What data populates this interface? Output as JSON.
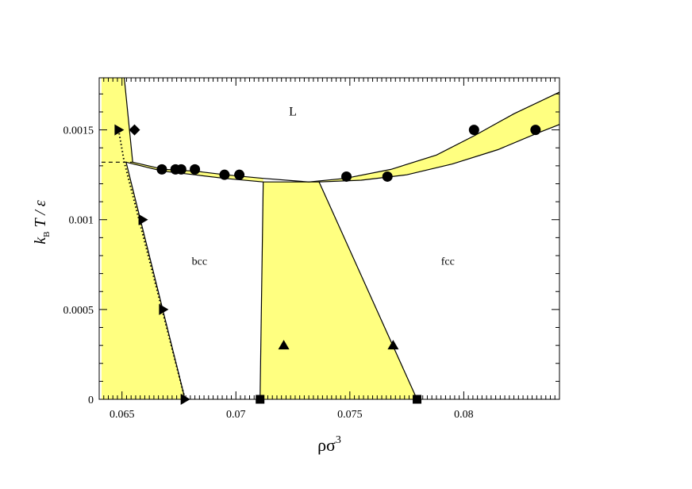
{
  "chart_data": {
    "type": "scatter",
    "xlabel": "ρσ",
    "xlabel_sup": "3",
    "ylabel": {
      "k": "k",
      "sub": "B",
      "rest": " T / ε"
    },
    "xlim": [
      0.064,
      0.0842
    ],
    "ylim": [
      0,
      0.00179
    ],
    "x_ticks": [
      {
        "value": 0.065,
        "label": "0.065"
      },
      {
        "value": 0.07,
        "label": "0.07"
      },
      {
        "value": 0.075,
        "label": "0.075"
      },
      {
        "value": 0.08,
        "label": "0.08"
      }
    ],
    "y_ticks": [
      {
        "value": 0,
        "label": "0"
      },
      {
        "value": 0.0005,
        "label": "0.0005"
      },
      {
        "value": 0.001,
        "label": "0.001"
      },
      {
        "value": 0.0015,
        "label": "0.0015"
      }
    ],
    "region_labels": [
      {
        "text": "L",
        "x": 0.0725,
        "y": 0.00158
      },
      {
        "text": "bcc",
        "x": 0.0684,
        "y": 0.00075
      },
      {
        "text": "fcc",
        "x": 0.0793,
        "y": 0.00075
      }
    ],
    "fill_color": "#ffff80",
    "regions": [
      {
        "name": "liquid-gas-coexistence",
        "points": [
          [
            0.0641,
            0.00179
          ],
          [
            0.0651,
            0.00179
          ],
          [
            0.06547,
            0.00132
          ],
          [
            0.0641,
            0.00132
          ]
        ]
      },
      {
        "name": "left-coexistence-strip",
        "points": [
          [
            0.0641,
            0.00132
          ],
          [
            0.06518,
            0.00132
          ],
          [
            0.06777,
            0
          ],
          [
            0.0641,
            0
          ]
        ]
      },
      {
        "name": "bcc-liquid-band",
        "points": [
          [
            0.06547,
            0.00132
          ],
          [
            0.06685,
            0.00128
          ],
          [
            0.06825,
            0.00127
          ],
          [
            0.06955,
            0.00125
          ],
          [
            0.0712,
            0.00123
          ],
          [
            0.0712,
            0.00121
          ],
          [
            0.0695,
            0.00123
          ],
          [
            0.0682,
            0.00125
          ],
          [
            0.0668,
            0.00127
          ],
          [
            0.06518,
            0.00132
          ]
        ]
      },
      {
        "name": "bcc-fcc-coexistence",
        "points": [
          [
            0.07106,
            0
          ],
          [
            0.0712,
            0.00121
          ],
          [
            0.07365,
            0.00121
          ],
          [
            0.07795,
            0
          ]
        ]
      },
      {
        "name": "fcc-liquid-band",
        "points": [
          [
            0.0732,
            0.00121
          ],
          [
            0.0748,
            0.00123
          ],
          [
            0.0768,
            0.00128
          ],
          [
            0.0788,
            0.00136
          ],
          [
            0.0805,
            0.00147
          ],
          [
            0.0822,
            0.00159
          ],
          [
            0.0842,
            0.00171
          ],
          [
            0.0842,
            0.00153
          ],
          [
            0.0832,
            0.00148
          ],
          [
            0.0815,
            0.00139
          ],
          [
            0.0795,
            0.00131
          ],
          [
            0.0775,
            0.00125
          ],
          [
            0.0755,
            0.00122
          ],
          [
            0.07365,
            0.00121
          ]
        ]
      }
    ],
    "boundaries": [
      {
        "name": "gas-boundary",
        "style": "solid",
        "points": [
          [
            0.0651,
            0.00179
          ],
          [
            0.06547,
            0.00132
          ]
        ]
      },
      {
        "name": "bcc-coexistence-left",
        "style": "solid",
        "points": [
          [
            0.06518,
            0.00132
          ],
          [
            0.06777,
            0
          ]
        ]
      },
      {
        "name": "bcc-coexistence-dotted",
        "style": "dotted",
        "points": [
          [
            0.06485,
            0.0015
          ],
          [
            0.0651,
            0.00132
          ],
          [
            0.06777,
            0
          ]
        ]
      },
      {
        "name": "triple-line",
        "style": "dashed",
        "points": [
          [
            0.0641,
            0.00132
          ],
          [
            0.06547,
            0.00132
          ]
        ]
      },
      {
        "name": "bcc-freezing-upper",
        "style": "solid",
        "points": [
          [
            0.06547,
            0.00132
          ],
          [
            0.06685,
            0.00128
          ],
          [
            0.06825,
            0.00127
          ],
          [
            0.06955,
            0.00125
          ],
          [
            0.0712,
            0.00123
          ],
          [
            0.0732,
            0.00121
          ],
          [
            0.0748,
            0.00123
          ],
          [
            0.0768,
            0.00128
          ],
          [
            0.0788,
            0.00136
          ],
          [
            0.0805,
            0.00147
          ],
          [
            0.0822,
            0.00159
          ],
          [
            0.0842,
            0.00171
          ]
        ]
      },
      {
        "name": "bcc-melting-lower",
        "style": "solid",
        "points": [
          [
            0.06518,
            0.00132
          ],
          [
            0.0668,
            0.00127
          ],
          [
            0.0682,
            0.00125
          ],
          [
            0.0695,
            0.00123
          ],
          [
            0.0712,
            0.00121
          ],
          [
            0.07365,
            0.00121
          ],
          [
            0.0755,
            0.00122
          ],
          [
            0.0775,
            0.00125
          ],
          [
            0.0795,
            0.00131
          ],
          [
            0.0815,
            0.00139
          ],
          [
            0.0832,
            0.00148
          ],
          [
            0.0842,
            0.00153
          ]
        ]
      },
      {
        "name": "bcc-fcc-left",
        "style": "solid",
        "points": [
          [
            0.07106,
            0
          ],
          [
            0.0712,
            0.00121
          ]
        ]
      },
      {
        "name": "bcc-fcc-right",
        "style": "solid",
        "points": [
          [
            0.07365,
            0.00121
          ],
          [
            0.07795,
            0
          ]
        ]
      }
    ],
    "series": [
      {
        "marker": "circle",
        "points": [
          [
            0.06675,
            0.00128
          ],
          [
            0.06735,
            0.00128
          ],
          [
            0.0676,
            0.00128
          ],
          [
            0.0682,
            0.00128
          ],
          [
            0.0695,
            0.00125
          ],
          [
            0.07015,
            0.00125
          ],
          [
            0.07485,
            0.00124
          ],
          [
            0.07665,
            0.00124
          ],
          [
            0.08045,
            0.0015
          ],
          [
            0.08315,
            0.0015
          ]
        ]
      },
      {
        "marker": "triangle-up",
        "points": [
          [
            0.0721,
            0.0003
          ],
          [
            0.0769,
            0.0003
          ]
        ]
      },
      {
        "marker": "square",
        "points": [
          [
            0.07106,
            0
          ],
          [
            0.07795,
            0
          ]
        ]
      },
      {
        "marker": "triangle-right",
        "points": [
          [
            0.06485,
            0.0015
          ],
          [
            0.0659,
            0.001
          ],
          [
            0.0668,
            0.0005
          ],
          [
            0.06775,
            0
          ]
        ]
      },
      {
        "marker": "diamond",
        "points": [
          [
            0.06555,
            0.0015
          ]
        ]
      }
    ]
  }
}
